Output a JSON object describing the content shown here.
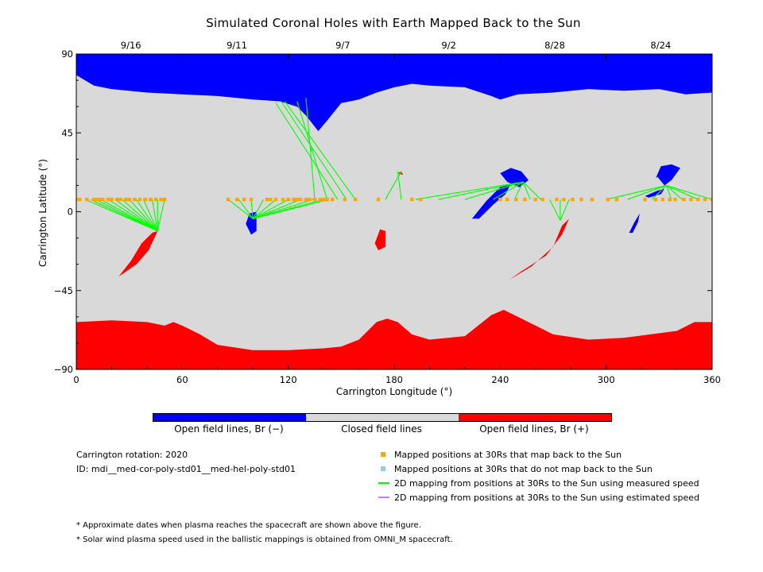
{
  "title": "Simulated Coronal Holes with Earth Mapped Back to the Sun",
  "chart_data": {
    "type": "map",
    "title": "Simulated Coronal Holes with Earth Mapped Back to the Sun",
    "xlabel": "Carrington Longitude (°)",
    "ylabel": "Carrington Latitude (°)",
    "xlim": [
      0,
      360
    ],
    "ylim": [
      -90,
      90
    ],
    "x_ticks": [
      "0",
      "60",
      "120",
      "180",
      "240",
      "300",
      "360"
    ],
    "y_ticks": [
      "90",
      "45",
      "0",
      "−45",
      "−90"
    ],
    "top_date_ticks": [
      {
        "label": "9/16",
        "lon": 30
      },
      {
        "label": "9/11",
        "lon": 90
      },
      {
        "label": "9/7",
        "lon": 150
      },
      {
        "label": "9/2",
        "lon": 210
      },
      {
        "label": "8/28",
        "lon": 270
      },
      {
        "label": "8/24",
        "lon": 330
      }
    ],
    "regions": {
      "north_open_negative": [
        [
          0,
          78
        ],
        [
          10,
          72
        ],
        [
          20,
          70
        ],
        [
          40,
          68
        ],
        [
          60,
          67
        ],
        [
          80,
          66
        ],
        [
          100,
          64
        ],
        [
          115,
          63
        ],
        [
          125,
          60
        ],
        [
          130,
          55
        ],
        [
          137,
          46
        ],
        [
          142,
          52
        ],
        [
          150,
          62
        ],
        [
          160,
          64
        ],
        [
          170,
          68
        ],
        [
          180,
          71
        ],
        [
          190,
          73
        ],
        [
          200,
          72
        ],
        [
          220,
          71
        ],
        [
          235,
          66
        ],
        [
          240,
          64
        ],
        [
          250,
          67
        ],
        [
          270,
          68
        ],
        [
          290,
          70
        ],
        [
          310,
          69
        ],
        [
          330,
          70
        ],
        [
          345,
          67
        ],
        [
          360,
          68
        ]
      ],
      "south_open_positive": [
        [
          0,
          -63
        ],
        [
          20,
          -62
        ],
        [
          40,
          -63
        ],
        [
          50,
          -65
        ],
        [
          55,
          -63
        ],
        [
          60,
          -65
        ],
        [
          70,
          -70
        ],
        [
          80,
          -76
        ],
        [
          100,
          -79
        ],
        [
          120,
          -79
        ],
        [
          140,
          -78
        ],
        [
          150,
          -77
        ],
        [
          160,
          -73
        ],
        [
          170,
          -63
        ],
        [
          176,
          -61
        ],
        [
          182,
          -63
        ],
        [
          190,
          -70
        ],
        [
          200,
          -73
        ],
        [
          220,
          -71
        ],
        [
          235,
          -59
        ],
        [
          242,
          -56
        ],
        [
          250,
          -60
        ],
        [
          270,
          -70
        ],
        [
          290,
          -73
        ],
        [
          310,
          -72
        ],
        [
          325,
          -70
        ],
        [
          340,
          -68
        ],
        [
          350,
          -63
        ],
        [
          360,
          -63
        ]
      ]
    },
    "coronal_holes": [
      {
        "polarity": "positive",
        "outline": [
          [
            24,
            -37
          ],
          [
            31,
            -28
          ],
          [
            37,
            -18
          ],
          [
            43,
            -12
          ],
          [
            46,
            -11
          ],
          [
            41,
            -22
          ],
          [
            34,
            -30
          ]
        ]
      },
      {
        "polarity": "positive",
        "outline": [
          [
            169,
            -18
          ],
          [
            172,
            -10
          ],
          [
            175,
            -11
          ],
          [
            175,
            -20
          ],
          [
            171,
            -22
          ]
        ]
      },
      {
        "polarity": "positive",
        "outline": [
          [
            182,
            22
          ],
          [
            185,
            21
          ],
          [
            184,
            23
          ]
        ]
      },
      {
        "polarity": "positive",
        "outline": [
          [
            245,
            -39
          ],
          [
            258,
            -31
          ],
          [
            270,
            -20
          ],
          [
            275,
            -8
          ],
          [
            279,
            -4
          ],
          [
            275,
            -13
          ],
          [
            266,
            -25
          ],
          [
            252,
            -34
          ]
        ]
      },
      {
        "polarity": "negative",
        "outline": [
          [
            96,
            -7
          ],
          [
            98,
            -1
          ],
          [
            102,
            0
          ],
          [
            102,
            -11
          ],
          [
            99,
            -13
          ]
        ]
      },
      {
        "polarity": "negative",
        "outline": [
          [
            224,
            -4
          ],
          [
            232,
            6
          ],
          [
            240,
            14
          ],
          [
            246,
            16
          ],
          [
            243,
            10
          ],
          [
            236,
            4
          ],
          [
            228,
            -4
          ]
        ]
      },
      {
        "polarity": "negative",
        "outline": [
          [
            240,
            22
          ],
          [
            246,
            25
          ],
          [
            252,
            23
          ],
          [
            256,
            18
          ],
          [
            251,
            14
          ],
          [
            244,
            17
          ]
        ]
      },
      {
        "polarity": "negative",
        "outline": [
          [
            328,
            19
          ],
          [
            331,
            26
          ],
          [
            337,
            27
          ],
          [
            342,
            25
          ],
          [
            337,
            18
          ],
          [
            333,
            15
          ],
          [
            329,
            20
          ]
        ]
      },
      {
        "polarity": "negative",
        "outline": [
          [
            313,
            -12
          ],
          [
            316,
            -6
          ],
          [
            319,
            -1
          ],
          [
            318,
            -6
          ],
          [
            315,
            -12
          ]
        ]
      },
      {
        "polarity": "negative",
        "outline": [
          [
            322,
            9
          ],
          [
            329,
            12
          ],
          [
            333,
            13
          ],
          [
            331,
            10
          ],
          [
            324,
            8
          ]
        ]
      }
    ],
    "mapped_points_30Rs_lat": 7,
    "mapped_points_30Rs_lon": [
      0,
      2,
      6,
      10,
      11,
      13,
      15,
      18,
      20,
      23,
      25,
      28,
      30,
      33,
      36,
      39,
      42,
      45,
      48,
      50,
      86,
      91,
      95,
      99,
      108,
      110,
      113,
      117,
      120,
      123,
      125,
      127,
      130,
      132,
      135,
      138,
      140,
      142,
      145,
      152,
      158,
      171,
      190,
      195,
      240,
      244,
      249,
      254,
      260,
      264,
      272,
      276,
      281,
      286,
      292,
      301,
      306,
      322,
      328,
      332,
      336,
      339,
      344,
      348,
      352,
      356,
      360
    ],
    "mappings": [
      {
        "from": [
          [
            5,
            7
          ],
          [
            8,
            7
          ],
          [
            11,
            7
          ],
          [
            14,
            7
          ],
          [
            18,
            7
          ],
          [
            22,
            7
          ],
          [
            26,
            7
          ],
          [
            30,
            7
          ],
          [
            34,
            7
          ],
          [
            38,
            7
          ],
          [
            43,
            7
          ],
          [
            46,
            7
          ],
          [
            50,
            7
          ]
        ],
        "to": [
          46,
          -11
        ]
      },
      {
        "from": [
          [
            86,
            7
          ],
          [
            92,
            7
          ],
          [
            99,
            7
          ],
          [
            106,
            7
          ],
          [
            113,
            7
          ],
          [
            120,
            7
          ],
          [
            127,
            7
          ],
          [
            134,
            7
          ],
          [
            140,
            7
          ],
          [
            143,
            7
          ]
        ],
        "to": [
          100,
          -4
        ]
      },
      {
        "from": [
          [
            135,
            7
          ],
          [
            142,
            7
          ],
          [
            148,
            7
          ],
          [
            153,
            7
          ],
          [
            158,
            7
          ]
        ],
        "to": [
          [
            130,
            65
          ],
          [
            125,
            63
          ],
          [
            113,
            62
          ],
          [
            116,
            63
          ],
          [
            118,
            63
          ]
        ]
      },
      {
        "from": [
          [
            175,
            7
          ],
          [
            184,
            7
          ]
        ],
        "to": [
          [
            184,
            23
          ],
          [
            182,
            23
          ]
        ]
      },
      {
        "from": [
          [
            192,
            7
          ],
          [
            205,
            7
          ],
          [
            220,
            7
          ],
          [
            236,
            7
          ],
          [
            248,
            7
          ],
          [
            257,
            7
          ],
          [
            263,
            7
          ]
        ],
        "to": [
          253,
          17
        ]
      },
      {
        "from": [
          [
            268,
            7
          ],
          [
            274,
            7
          ],
          [
            279,
            7
          ]
        ],
        "to": [
          274,
          -5
        ]
      },
      {
        "from": [
          [
            300,
            7
          ],
          [
            312,
            7
          ],
          [
            326,
            7
          ],
          [
            337,
            7
          ],
          [
            343,
            7
          ],
          [
            352,
            7
          ],
          [
            360,
            7
          ]
        ],
        "to": [
          334,
          15
        ]
      }
    ],
    "colorbar": [
      "Open field lines, Br (−)",
      "Closed field lines",
      "Open field lines, Br (+)"
    ]
  },
  "colors": {
    "open_negative": "#0000ff",
    "closed": "#d9d9d9",
    "open_positive": "#ff0000",
    "mapped_dot": "#ffa500",
    "unmapped_dot": "#87cefa",
    "measured_line": "#00ff00",
    "estimated_line": "#c080ff"
  },
  "colorbar_labels": {
    "negative": "Open field lines, Br (−)",
    "closed": "Closed field lines",
    "positive": "Open field lines, Br (+)"
  },
  "info": {
    "rotation": "Carrington rotation: 2020",
    "id": "ID: mdi__med-cor-poly-std01__med-hel-poly-std01"
  },
  "legend": {
    "mapped": "Mapped positions at 30Rs that map back to the Sun",
    "unmapped": "Mapped positions at 30Rs that do not map back to the Sun",
    "measured": "2D mapping from positions at 30Rs to the Sun using measured speed",
    "estimated": "2D mapping from positions at 30Rs to the Sun using estimated speed"
  },
  "notes": {
    "dates": "* Approximate dates when plasma reaches the spacecraft are shown above the figure.",
    "speed": "* Solar wind plasma speed used in the ballistic mappings is obtained from OMNI_M spacecraft."
  }
}
